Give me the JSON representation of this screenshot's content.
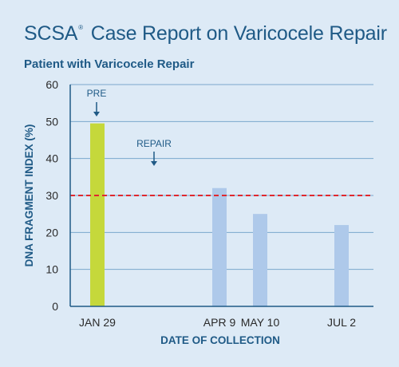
{
  "header": {
    "title_prefix": "SCSA",
    "title_mark": "®",
    "title_suffix": " Case Report on Varicocele Repair",
    "subtitle": "Patient with Varicocele Repair"
  },
  "chart_data": {
    "type": "bar",
    "title": "SCSA® Case Report on Varicocele Repair",
    "subtitle": "Patient with Varicocele Repair",
    "xlabel": "DATE OF COLLECTION",
    "ylabel": "DNA FRAGMENT INDEX (%)",
    "ylim": [
      0,
      60
    ],
    "yticks": [
      0,
      10,
      20,
      30,
      40,
      50,
      60
    ],
    "grid": true,
    "bars": [
      {
        "label": "JAN 29",
        "value": 49.5,
        "color": "#c5d83b"
      },
      {
        "label": "APR 9",
        "value": 32,
        "color": "#aec9ea"
      },
      {
        "label": "MAY 10",
        "value": 25,
        "color": "#aec9ea"
      },
      {
        "label": "JUL 2",
        "value": 22,
        "color": "#aec9ea"
      }
    ],
    "threshold": {
      "value": 30,
      "color": "#e0282e",
      "style": "dashed"
    },
    "annotations": [
      {
        "text": "PRE",
        "points_to": "JAN 29"
      },
      {
        "text": "REPAIR",
        "points_to": "between JAN 29 and APR 9"
      }
    ],
    "colors": {
      "axis": "#1f5a86",
      "grid": "#7aa7cc",
      "pre_bar": "#c5d83b",
      "post_bar": "#aec9ea"
    }
  }
}
